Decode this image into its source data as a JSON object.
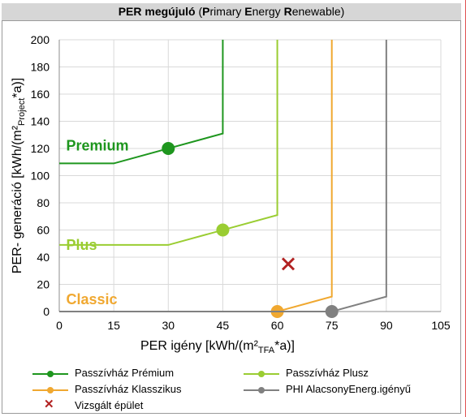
{
  "title": {
    "bold_prefix": "PER  megújuló",
    "paren_open": "  (",
    "w1_initial": "P",
    "w1_rest": "rimary ",
    "w2_initial": "E",
    "w2_rest": "nergy ",
    "w3_initial": "R",
    "w3_rest": "enewable)"
  },
  "chart_data": {
    "type": "line",
    "xlabel": "PER igény [kWh/(m²TFA*a)]",
    "ylabel": "PER- generáció  [kWh/(m²Project*a)]",
    "xlim": [
      0,
      105
    ],
    "ylim": [
      0,
      200
    ],
    "xticks": [
      0,
      15,
      30,
      45,
      60,
      75,
      90,
      105
    ],
    "yticks": [
      0,
      20,
      40,
      60,
      80,
      100,
      120,
      140,
      160,
      180,
      200
    ],
    "grid": true,
    "legend_position": "bottom",
    "series": [
      {
        "name": "Passzívház Prémium",
        "color": "#1e961e",
        "x": [
          0,
          15,
          45,
          45
        ],
        "y": [
          109,
          109,
          131,
          200
        ],
        "marker": {
          "x": 30,
          "y": 120
        }
      },
      {
        "name": "Passzívház Plusz",
        "color": "#9acd32",
        "x": [
          0,
          30,
          60,
          60
        ],
        "y": [
          49,
          49,
          71,
          200
        ],
        "marker": {
          "x": 45,
          "y": 60
        }
      },
      {
        "name": "Passzívház Klasszikus",
        "color": "#f0a830",
        "x": [
          0,
          60,
          75,
          75
        ],
        "y": [
          0,
          0,
          11,
          200
        ],
        "marker": {
          "x": 60,
          "y": 0
        }
      },
      {
        "name": "PHI AlacsonyEnerg.igényű",
        "color": "#808080",
        "x": [
          0,
          75,
          90,
          90
        ],
        "y": [
          0,
          0,
          11,
          200
        ],
        "marker": {
          "x": 75,
          "y": 0
        }
      }
    ],
    "point": {
      "name": "Vizsgált épület",
      "color": "#b22222",
      "x": 63,
      "y": 35
    },
    "annotations": [
      {
        "text": "Premium",
        "color": "#1e961e",
        "x": 1,
        "y": 122
      },
      {
        "text": "Plus",
        "color": "#9acd32",
        "x": 1,
        "y": 49
      },
      {
        "text": "Classic",
        "color": "#f0a830",
        "x": 1,
        "y": 9
      }
    ]
  }
}
